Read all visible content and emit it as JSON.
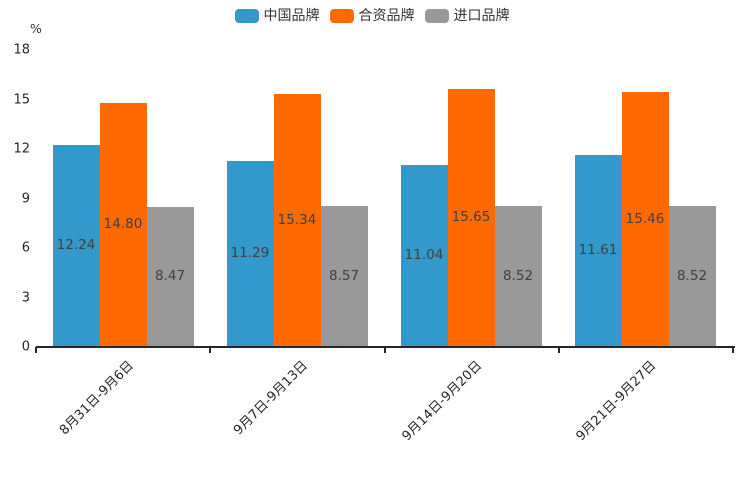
{
  "chart_data": {
    "type": "bar",
    "title": "",
    "ylabel": "%",
    "xlabel": "",
    "ylim": [
      0,
      18
    ],
    "yticks": [
      0,
      3,
      6,
      9,
      12,
      15,
      18
    ],
    "grid": false,
    "legend_position": "top",
    "value_labels": "inside-center",
    "value_label_decimals": 2,
    "categories": [
      "8月31日-9月6日",
      "9月7日-9月13日",
      "9月14日-9月20日",
      "9月21日-9月27日"
    ],
    "series": [
      {
        "name": "中国品牌",
        "color": "#3398CC",
        "values": [
          12.24,
          11.29,
          11.04,
          11.61
        ]
      },
      {
        "name": "合资品牌",
        "color": "#FF6A00",
        "values": [
          14.8,
          15.34,
          15.65,
          15.46
        ]
      },
      {
        "name": "进口品牌",
        "color": "#999999",
        "values": [
          8.47,
          8.57,
          8.52,
          8.52
        ]
      }
    ],
    "colors": {
      "background": "#FFFFFF",
      "axis": "#262626",
      "tick_label": "#262626",
      "bar_value_label": "#404040"
    }
  }
}
